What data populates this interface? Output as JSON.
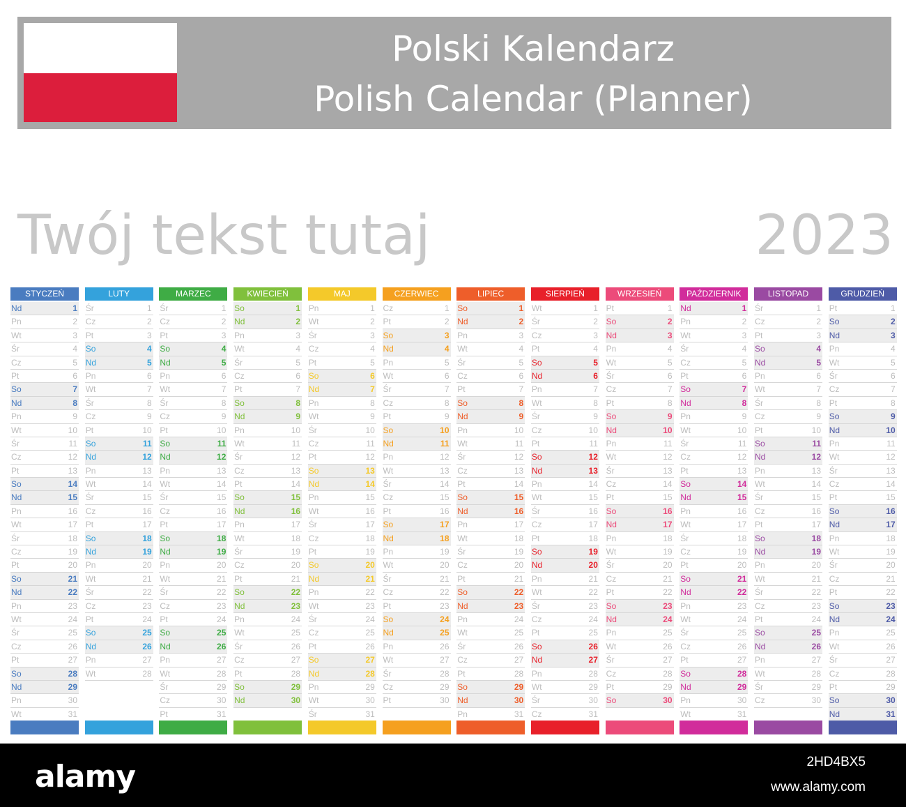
{
  "header": {
    "title_line1": "Polski Kalendarz",
    "title_line2": "Polish Calendar (Planner)",
    "flag_colors": [
      "#ffffff",
      "#dc1e3c"
    ]
  },
  "tagline": "Twój tekst tutaj",
  "year": "2023",
  "calendar": {
    "months": [
      {
        "name": "STYCZEŃ",
        "color": "#4a7cc0",
        "first_weekday": 6,
        "days": 31
      },
      {
        "name": "LUTY",
        "color": "#34a2dc",
        "first_weekday": 2,
        "days": 28
      },
      {
        "name": "MARZEC",
        "color": "#3fac45",
        "first_weekday": 2,
        "days": 31
      },
      {
        "name": "KWIECIEŃ",
        "color": "#80c03c",
        "first_weekday": 5,
        "days": 30
      },
      {
        "name": "MAJ",
        "color": "#f4c92a",
        "first_weekday": 0,
        "days": 31
      },
      {
        "name": "CZERWIEC",
        "color": "#f5a01f",
        "first_weekday": 3,
        "days": 30
      },
      {
        "name": "LIPIEC",
        "color": "#ee5e2a",
        "first_weekday": 5,
        "days": 31
      },
      {
        "name": "SIERPIEŃ",
        "color": "#e8202a",
        "first_weekday": 1,
        "days": 31
      },
      {
        "name": "WRZESIEŃ",
        "color": "#ec4b7a",
        "first_weekday": 4,
        "days": 30
      },
      {
        "name": "PAŹDZIERNIK",
        "color": "#d12c9b",
        "first_weekday": 6,
        "days": 31
      },
      {
        "name": "LISTOPAD",
        "color": "#9a4aa2",
        "first_weekday": 2,
        "days": 30
      },
      {
        "name": "GRUDZIEŃ",
        "color": "#4e5ba7",
        "first_weekday": 4,
        "days": 31
      }
    ],
    "day_abbreviations": [
      "Pn",
      "Wt",
      "Śr",
      "Cz",
      "Pt",
      "So",
      "Nd"
    ],
    "weekend_day_indexes": [
      5,
      6
    ]
  },
  "footer": {
    "brand": "alamy",
    "image_id": "2HD4BX5",
    "site_url": "www.alamy.com"
  }
}
